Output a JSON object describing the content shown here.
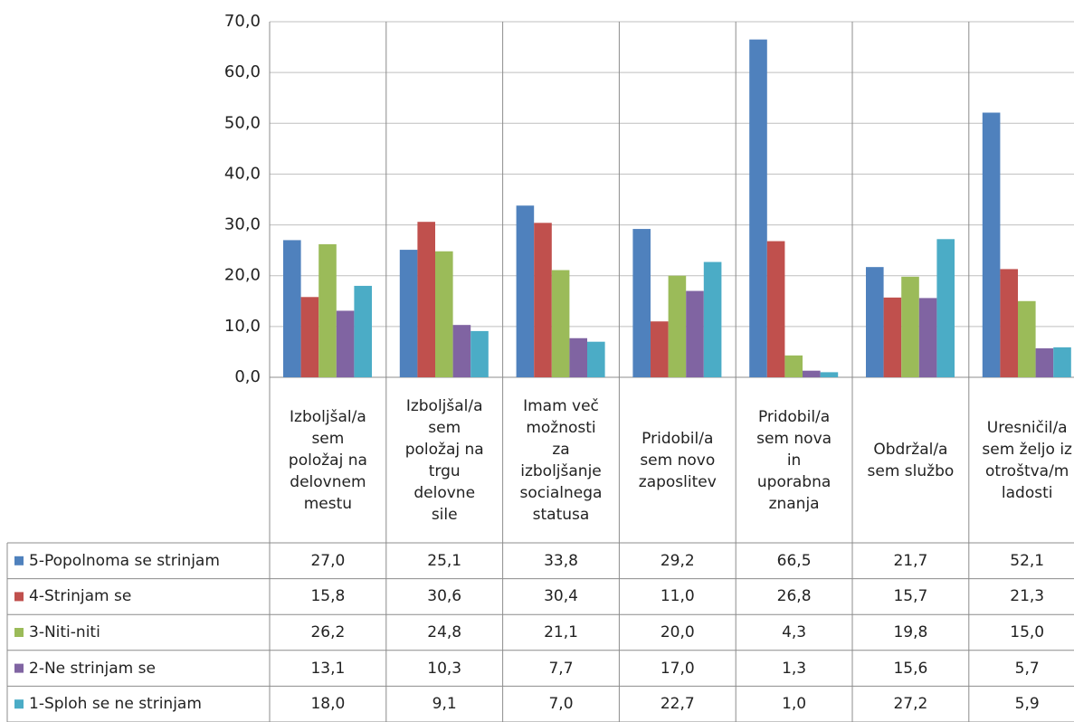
{
  "chart_data": {
    "type": "bar",
    "categories": [
      "Izboljšal/a\nsem\npoložaj na\ndelovnem\nmestu",
      "Izboljšal/a\nsem\npoložaj na\ntrgu\ndelovne\nsile",
      "Imam več\nmožnosti\nza\nizboljšanje\nsocialnega\nstatusa",
      "Pridobil/a\nsem novo\nzaposlitev",
      "Pridobil/a\nsem nova\nin\nuporabna\nznanja",
      "Obdržal/a\nsem službo",
      "Uresničil/a\nsem željo iz\notroštva/m\nladosti"
    ],
    "series": [
      {
        "name": "5-Popolnoma se strinjam",
        "color": "#4f81bd",
        "values": [
          27.0,
          25.1,
          33.8,
          29.2,
          66.5,
          21.7,
          52.1
        ],
        "value_labels": [
          "27,0",
          "25,1",
          "33,8",
          "29,2",
          "66,5",
          "21,7",
          "52,1"
        ]
      },
      {
        "name": "4-Strinjam se",
        "color": "#c0504d",
        "values": [
          15.8,
          30.6,
          30.4,
          11.0,
          26.8,
          15.7,
          21.3
        ],
        "value_labels": [
          "15,8",
          "30,6",
          "30,4",
          "11,0",
          "26,8",
          "15,7",
          "21,3"
        ]
      },
      {
        "name": "3-Niti-niti",
        "color": "#9bbb59",
        "values": [
          26.2,
          24.8,
          21.1,
          20.0,
          4.3,
          19.8,
          15.0
        ],
        "value_labels": [
          "26,2",
          "24,8",
          "21,1",
          "20,0",
          "4,3",
          "19,8",
          "15,0"
        ]
      },
      {
        "name": "2-Ne strinjam se",
        "color": "#8064a2",
        "values": [
          13.1,
          10.3,
          7.7,
          17.0,
          1.3,
          15.6,
          5.7
        ],
        "value_labels": [
          "13,1",
          "10,3",
          "7,7",
          "17,0",
          "1,3",
          "15,6",
          "5,7"
        ]
      },
      {
        "name": "1-Sploh se ne strinjam",
        "color": "#4bacc6",
        "values": [
          18.0,
          9.1,
          7.0,
          22.7,
          1.0,
          27.2,
          5.9
        ],
        "value_labels": [
          "18,0",
          "9,1",
          "7,0",
          "22,7",
          "1,0",
          "27,2",
          "5,9"
        ]
      }
    ],
    "ylim": [
      0,
      70
    ],
    "yticks": [
      {
        "value": 0,
        "label": "0,0"
      },
      {
        "value": 10,
        "label": "10,0"
      },
      {
        "value": 20,
        "label": "20,0"
      },
      {
        "value": 30,
        "label": "30,0"
      },
      {
        "value": 40,
        "label": "40,0"
      },
      {
        "value": 50,
        "label": "50,0"
      },
      {
        "value": 60,
        "label": "60,0"
      },
      {
        "value": 70,
        "label": "70,0"
      }
    ],
    "grid": true
  }
}
